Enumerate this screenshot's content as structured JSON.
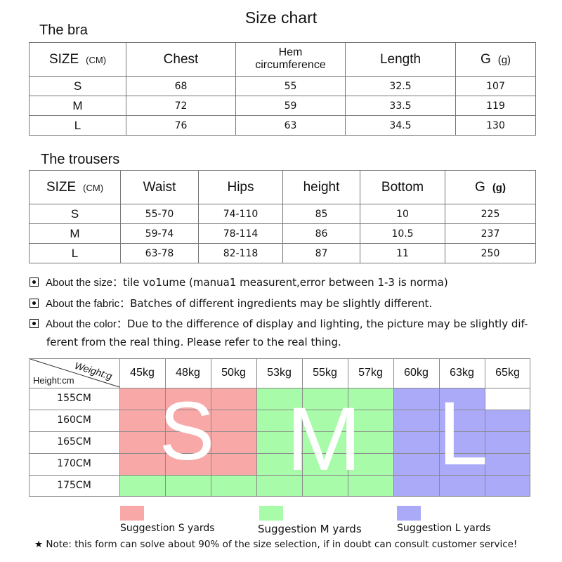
{
  "title": "Size chart",
  "bra": {
    "section_title": "The bra",
    "headers": {
      "size": "SIZE",
      "size_unit": "(CM)",
      "chest": "Chest",
      "hem_line1": "Hem",
      "hem_line2": "circumference",
      "length": "Length",
      "g": "G",
      "g_unit": "(g)"
    },
    "rows": [
      [
        "S",
        "68",
        "55",
        "32.5",
        "107"
      ],
      [
        "M",
        "72",
        "59",
        "33.5",
        "119"
      ],
      [
        "L",
        "76",
        "63",
        "34.5",
        "130"
      ]
    ]
  },
  "trousers": {
    "section_title": "The trousers",
    "headers": {
      "size": "SIZE",
      "size_unit": "(CM)",
      "waist": "Waist",
      "hips": "Hips",
      "height": "height",
      "bottom": "Bottom",
      "g": "G",
      "g_unit": "(g)"
    },
    "rows": [
      [
        "S",
        "55-70",
        "74-110",
        "85",
        "10",
        "225"
      ],
      [
        "M",
        "59-74",
        "78-114",
        "86",
        "10.5",
        "237"
      ],
      [
        "L",
        "63-78",
        "82-118",
        "87",
        "11",
        "250"
      ]
    ]
  },
  "notes": [
    {
      "label": "About the size：",
      "text": "tile vo1ume (manua1 measurent,error between 1-3 is norma)"
    },
    {
      "label": "About the fabric：",
      "text": "Batches of different ingredients may be slightly different."
    },
    {
      "label": "About the color：",
      "text": "Due to the difference of display and lighting, the picture may be slightly dif-",
      "text2": "ferent from the real thing. Please refer to the real thing."
    }
  ],
  "size_grid": {
    "corner_weight": "Weight:g",
    "corner_height": "Height:cm",
    "weights": [
      "45kg",
      "48kg",
      "50kg",
      "53kg",
      "55kg",
      "57kg",
      "60kg",
      "63kg",
      "65kg"
    ],
    "heights": [
      "155CM",
      "160CM",
      "165CM",
      "170CM",
      "175CM"
    ],
    "cells": [
      [
        "S",
        "S",
        "S",
        "M",
        "M",
        "M",
        "L",
        "L",
        ""
      ],
      [
        "S",
        "S",
        "S",
        "M",
        "M",
        "M",
        "L",
        "L",
        "L"
      ],
      [
        "S",
        "S",
        "S",
        "M",
        "M",
        "M",
        "L",
        "L",
        "L"
      ],
      [
        "S",
        "S",
        "S",
        "M",
        "M",
        "M",
        "L",
        "L",
        "L"
      ],
      [
        "M",
        "M",
        "M",
        "M",
        "M",
        "M",
        "L",
        "L",
        "L"
      ]
    ],
    "big_letters": {
      "S": "S",
      "M": "M",
      "L": "L"
    },
    "colors": {
      "S": "#f9a8a8",
      "M": "#a8fba8",
      "L": "#aaaaf9"
    }
  },
  "legend": [
    {
      "key": "S",
      "label": "Suggestion S yards"
    },
    {
      "key": "M",
      "label": "Suggestion M yards"
    },
    {
      "key": "L",
      "label": "Suggestion L yards"
    }
  ],
  "footer_note": "★ Note: this form can solve about 90% of the size selection, if in doubt can consult customer service!"
}
